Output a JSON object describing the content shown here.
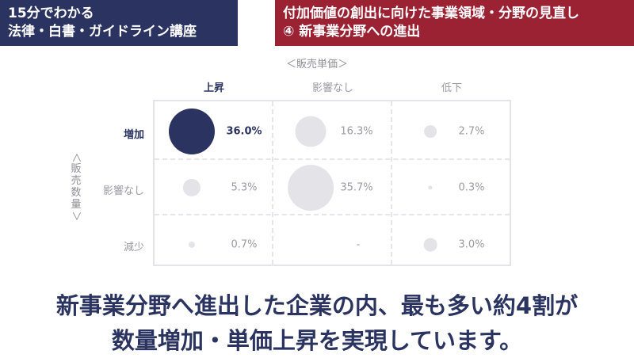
{
  "header": {
    "series_line1": "15分でわかる",
    "series_line2": "法律・白書・ガイドライン講座",
    "topic_line1": "付加価値の創出に向けた事業領域・分野の見直し",
    "topic_line2": "④ 新事業分野への進出"
  },
  "axes": {
    "price_label": "＜販売単価＞",
    "volume_chars": [
      "販",
      "売",
      "数",
      "量"
    ]
  },
  "columns": [
    "上昇",
    "影響なし",
    "低下"
  ],
  "rows": [
    {
      "label": "増加",
      "cells": [
        {
          "value": "36.0%",
          "percent": 36.0,
          "highlight": true
        },
        {
          "value": "16.3%",
          "percent": 16.3,
          "highlight": false
        },
        {
          "value": "2.7%",
          "percent": 2.7,
          "highlight": false
        }
      ]
    },
    {
      "label": "影響なし",
      "cells": [
        {
          "value": "5.3%",
          "percent": 5.3,
          "highlight": false
        },
        {
          "value": "35.7%",
          "percent": 35.7,
          "highlight": false
        },
        {
          "value": "0.3%",
          "percent": 0.3,
          "highlight": false
        }
      ]
    },
    {
      "label": "減少",
      "cells": [
        {
          "value": "0.7%",
          "percent": 0.7,
          "highlight": false
        },
        {
          "value": "-",
          "percent": 0,
          "highlight": false
        },
        {
          "value": "3.0%",
          "percent": 3.0,
          "highlight": false
        }
      ]
    }
  ],
  "conclusion": {
    "line1": "新事業分野へ進出した企業の内、最も多い約4割が",
    "line2": "数量増加・単価上昇を実現しています。"
  },
  "colors": {
    "navy": "#2b3460",
    "crimson": "#9b2233",
    "bubble_gray": "#e4e3e8"
  }
}
